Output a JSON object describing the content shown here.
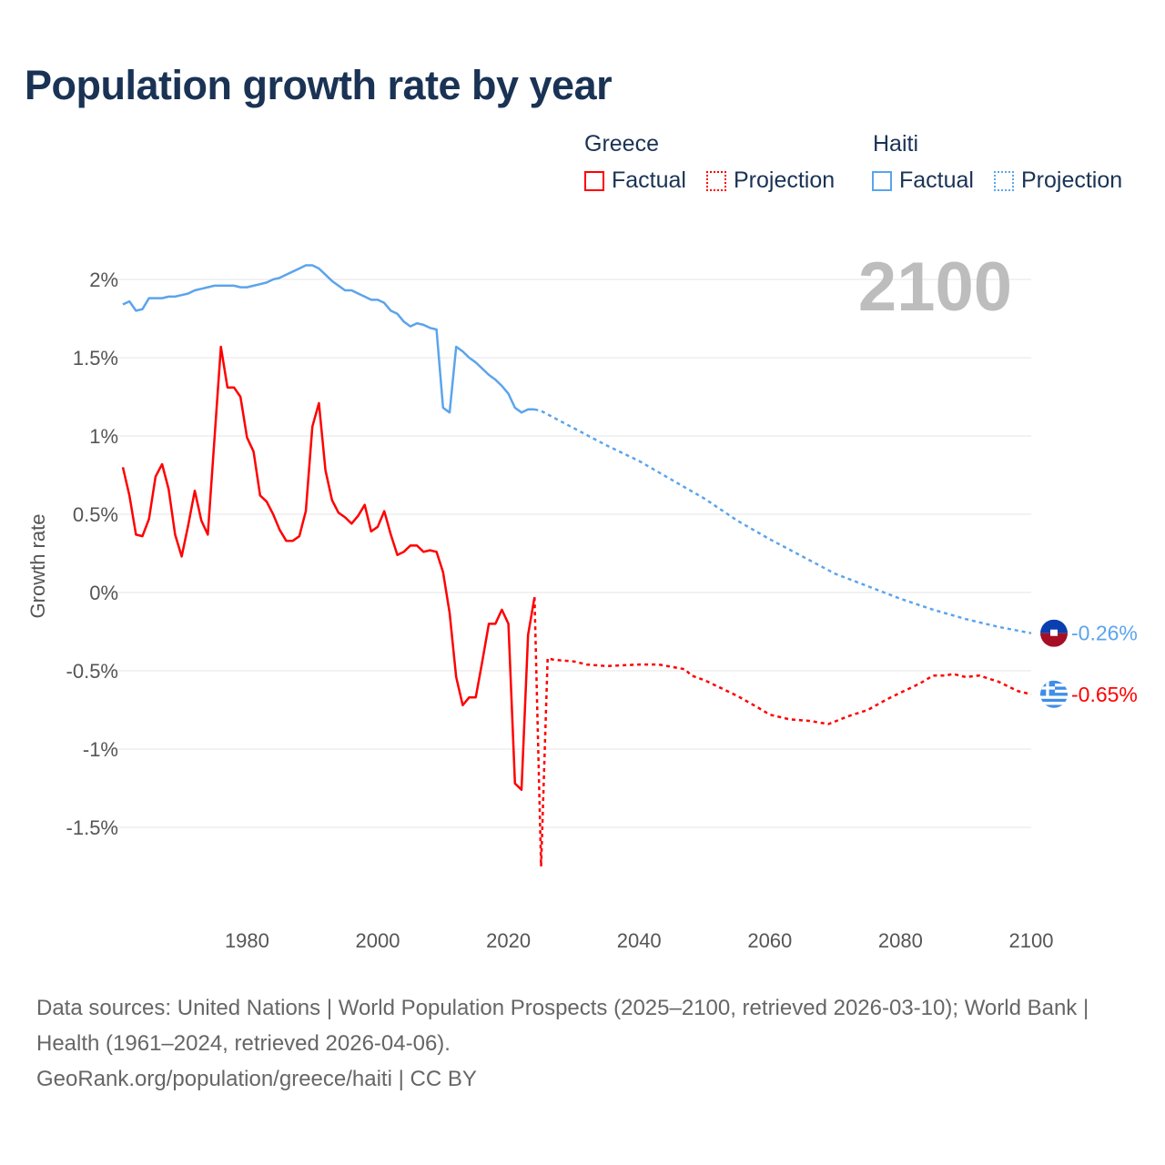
{
  "chart_data": {
    "type": "line",
    "title": "Population growth rate by year",
    "ylabel": "Growth rate",
    "xlabel": "",
    "xlim": [
      1961,
      2100
    ],
    "ylim": [
      -2.0,
      2.2
    ],
    "x_ticks": [
      1980,
      2000,
      2020,
      2040,
      2060,
      2080,
      2100
    ],
    "x_tick_labels": [
      "1980",
      "2000",
      "2020",
      "2040",
      "2060",
      "2080",
      "2100"
    ],
    "y_ticks": [
      2,
      1.5,
      1,
      0.5,
      0,
      -0.5,
      -1,
      -1.5
    ],
    "y_tick_labels": [
      "2%",
      "1.5%",
      "1%",
      "0.5%",
      "0%",
      "-0.5%",
      "-1%",
      "-1.5%"
    ],
    "grid": true,
    "year_display": "2100",
    "legend": {
      "placement": "top-right",
      "groups": [
        {
          "country": "Greece",
          "items": [
            "Factual",
            "Projection"
          ]
        },
        {
          "country": "Haiti",
          "items": [
            "Factual",
            "Projection"
          ]
        }
      ]
    },
    "series": [
      {
        "name": "Greece Factual",
        "country": "Greece",
        "kind": "factual",
        "color": "#ff0000",
        "x": [
          1961,
          1962,
          1963,
          1964,
          1965,
          1966,
          1967,
          1968,
          1969,
          1970,
          1971,
          1972,
          1973,
          1974,
          1975,
          1976,
          1977,
          1978,
          1979,
          1980,
          1981,
          1982,
          1983,
          1984,
          1985,
          1986,
          1987,
          1988,
          1989,
          1990,
          1991,
          1992,
          1993,
          1994,
          1995,
          1996,
          1997,
          1998,
          1999,
          2000,
          2001,
          2002,
          2003,
          2004,
          2005,
          2006,
          2007,
          2008,
          2009,
          2010,
          2011,
          2012,
          2013,
          2014,
          2015,
          2016,
          2017,
          2018,
          2019,
          2020,
          2021,
          2022,
          2023,
          2024
        ],
        "values": [
          0.8,
          0.62,
          0.37,
          0.36,
          0.47,
          0.74,
          0.82,
          0.66,
          0.37,
          0.23,
          0.43,
          0.65,
          0.46,
          0.37,
          0.97,
          1.57,
          1.31,
          1.31,
          1.25,
          0.99,
          0.9,
          0.62,
          0.58,
          0.5,
          0.4,
          0.33,
          0.33,
          0.36,
          0.52,
          1.06,
          1.21,
          0.78,
          0.59,
          0.51,
          0.48,
          0.44,
          0.49,
          0.56,
          0.39,
          0.42,
          0.52,
          0.37,
          0.24,
          0.26,
          0.3,
          0.3,
          0.26,
          0.27,
          0.26,
          0.13,
          -0.13,
          -0.54,
          -0.72,
          -0.67,
          -0.67,
          -0.44,
          -0.2,
          -0.2,
          -0.11,
          -0.2,
          -1.22,
          -1.26,
          -0.27,
          -0.03
        ]
      },
      {
        "name": "Greece Projection",
        "country": "Greece",
        "kind": "projection",
        "color": "#ff0000",
        "x": [
          2024,
          2025,
          2026,
          2027,
          2030,
          2032,
          2035,
          2040,
          2043,
          2047,
          2048,
          2050,
          2055,
          2058,
          2060,
          2063,
          2066,
          2069,
          2072,
          2075,
          2078,
          2080,
          2083,
          2085,
          2087,
          2088,
          2090,
          2092,
          2095,
          2098,
          2100
        ],
        "values": [
          -0.03,
          -1.75,
          -0.42,
          -0.43,
          -0.44,
          -0.46,
          -0.47,
          -0.46,
          -0.46,
          -0.49,
          -0.53,
          -0.56,
          -0.66,
          -0.73,
          -0.78,
          -0.81,
          -0.82,
          -0.84,
          -0.79,
          -0.75,
          -0.68,
          -0.64,
          -0.58,
          -0.53,
          -0.53,
          -0.52,
          -0.54,
          -0.53,
          -0.57,
          -0.63,
          -0.65
        ],
        "end_label": "-0.65%"
      },
      {
        "name": "Haiti Factual",
        "country": "Haiti",
        "kind": "factual",
        "color": "#5ba4ec",
        "x": [
          1961,
          1962,
          1963,
          1964,
          1965,
          1966,
          1967,
          1968,
          1969,
          1970,
          1971,
          1972,
          1973,
          1974,
          1975,
          1976,
          1977,
          1978,
          1979,
          1980,
          1981,
          1982,
          1983,
          1984,
          1985,
          1986,
          1987,
          1988,
          1989,
          1990,
          1991,
          1992,
          1993,
          1994,
          1995,
          1996,
          1997,
          1998,
          1999,
          2000,
          2001,
          2002,
          2003,
          2004,
          2005,
          2006,
          2007,
          2008,
          2009,
          2010,
          2011,
          2012,
          2013,
          2014,
          2015,
          2016,
          2017,
          2018,
          2019,
          2020,
          2021,
          2022,
          2023,
          2024
        ],
        "values": [
          1.84,
          1.86,
          1.8,
          1.81,
          1.88,
          1.88,
          1.88,
          1.89,
          1.89,
          1.9,
          1.91,
          1.93,
          1.94,
          1.95,
          1.96,
          1.96,
          1.96,
          1.96,
          1.95,
          1.95,
          1.96,
          1.97,
          1.98,
          2.0,
          2.01,
          2.03,
          2.05,
          2.07,
          2.09,
          2.09,
          2.07,
          2.03,
          1.99,
          1.96,
          1.93,
          1.93,
          1.91,
          1.89,
          1.87,
          1.87,
          1.85,
          1.8,
          1.78,
          1.73,
          1.7,
          1.72,
          1.71,
          1.69,
          1.68,
          1.18,
          1.15,
          1.57,
          1.54,
          1.5,
          1.47,
          1.43,
          1.39,
          1.36,
          1.32,
          1.27,
          1.18,
          1.15,
          1.17,
          1.17
        ]
      },
      {
        "name": "Haiti Projection",
        "country": "Haiti",
        "kind": "projection",
        "color": "#5ba4ec",
        "x": [
          2024,
          2025,
          2030,
          2035,
          2040,
          2045,
          2050,
          2055,
          2060,
          2065,
          2070,
          2075,
          2080,
          2085,
          2090,
          2095,
          2100
        ],
        "values": [
          1.17,
          1.16,
          1.05,
          0.94,
          0.84,
          0.72,
          0.6,
          0.46,
          0.34,
          0.23,
          0.12,
          0.04,
          -0.04,
          -0.11,
          -0.17,
          -0.22,
          -0.26
        ],
        "end_label": "-0.26%"
      }
    ]
  },
  "header": {
    "title": "Population growth rate by year"
  },
  "legend": {
    "greece": "Greece",
    "haiti": "Haiti",
    "factual": "Factual",
    "projection": "Projection"
  },
  "icons": {
    "greece_flag": "greece-flag-icon",
    "haiti_flag": "haiti-flag-icon"
  },
  "footer": {
    "sources": "Data sources: United Nations | World Population Prospects (2025–2100, retrieved 2026-03-10); World Bank | Health (1961–2024, retrieved 2026-04-06).",
    "credit": "GeoRank.org/population/greece/haiti | CC BY"
  }
}
